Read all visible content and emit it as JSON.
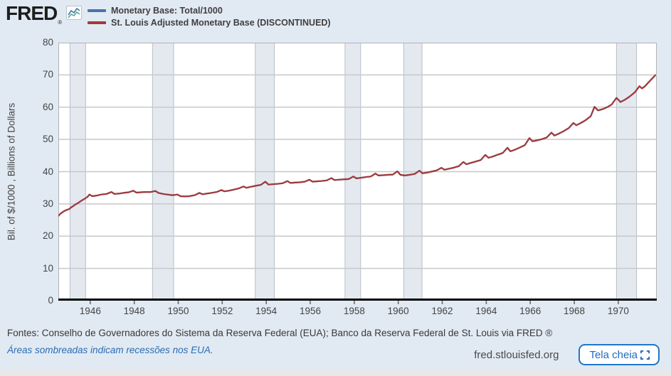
{
  "header": {
    "logo_text": "FRED",
    "registered_mark": "®",
    "legend": [
      {
        "label": "Monetary Base: Total/1000",
        "color": "#4a72a8"
      },
      {
        "label": "St. Louis Adjusted Monetary Base (DISCONTINUED)",
        "color": "#a23a3a"
      }
    ]
  },
  "footer": {
    "sources": "Fontes: Conselho de Governadores do Sistema da Reserva Federal (EUA); Banco da Reserva Federal de St. Louis via FRED ®",
    "note": "Áreas sombreadas indicam recessões nos EUA.",
    "site": "fred.stlouisfed.org",
    "fullscreen_label": "Tela cheia"
  },
  "colors": {
    "page_bg": "#e1eaf3",
    "plot_bg": "#ffffff",
    "grid": "#c8c8c8",
    "frame": "#b3b3b3",
    "band_fill": "#e4e9f0",
    "band_edge": "#b7bec7",
    "axis": "#000000",
    "tick": "#666666",
    "series_blue": "#4a72a8",
    "series_red": "#a23a3a",
    "accent_blue": "#1b6dc1"
  },
  "chart_data": {
    "type": "line",
    "title": "",
    "xlabel": "",
    "ylabel": "Bil. of $/1000 , Billions of Dollars",
    "xlim": [
      1944.55,
      1971.75
    ],
    "ylim": [
      0,
      80
    ],
    "yticks": [
      0,
      10,
      20,
      30,
      40,
      50,
      60,
      70,
      80
    ],
    "xticks": [
      1946,
      1948,
      1950,
      1952,
      1954,
      1956,
      1958,
      1960,
      1962,
      1964,
      1966,
      1968,
      1970
    ],
    "grid": "horizontal-only",
    "legend_position": "top-left",
    "recession_bands": [
      [
        1945.08,
        1945.79
      ],
      [
        1948.83,
        1949.79
      ],
      [
        1953.5,
        1954.37
      ],
      [
        1957.58,
        1958.29
      ],
      [
        1960.25,
        1961.08
      ],
      [
        1969.92,
        1970.83
      ]
    ],
    "series": [
      {
        "name": "Monetary Base: Total/1000",
        "color": "#4a72a8",
        "points": "shared"
      },
      {
        "name": "St. Louis Adjusted Monetary Base (DISCONTINUED)",
        "color": "#a23a3a",
        "points": "shared"
      }
    ],
    "points": [
      [
        1944.55,
        26.3
      ],
      [
        1944.65,
        27.0
      ],
      [
        1944.8,
        27.7
      ],
      [
        1944.95,
        28.2
      ],
      [
        1945.05,
        28.4
      ],
      [
        1945.12,
        28.9
      ],
      [
        1945.2,
        29.2
      ],
      [
        1945.3,
        29.7
      ],
      [
        1945.45,
        30.3
      ],
      [
        1945.6,
        31.0
      ],
      [
        1945.75,
        31.6
      ],
      [
        1945.88,
        32.2
      ],
      [
        1945.96,
        32.9
      ],
      [
        1946.1,
        32.4
      ],
      [
        1946.3,
        32.6
      ],
      [
        1946.5,
        32.9
      ],
      [
        1946.75,
        33.1
      ],
      [
        1946.96,
        33.7
      ],
      [
        1947.1,
        33.1
      ],
      [
        1947.3,
        33.2
      ],
      [
        1947.5,
        33.4
      ],
      [
        1947.75,
        33.6
      ],
      [
        1947.96,
        34.1
      ],
      [
        1948.1,
        33.5
      ],
      [
        1948.3,
        33.6
      ],
      [
        1948.5,
        33.7
      ],
      [
        1948.75,
        33.7
      ],
      [
        1948.96,
        34.0
      ],
      [
        1949.1,
        33.4
      ],
      [
        1949.3,
        33.1
      ],
      [
        1949.5,
        32.9
      ],
      [
        1949.75,
        32.7
      ],
      [
        1949.96,
        32.9
      ],
      [
        1950.1,
        32.4
      ],
      [
        1950.3,
        32.3
      ],
      [
        1950.5,
        32.4
      ],
      [
        1950.75,
        32.7
      ],
      [
        1950.96,
        33.4
      ],
      [
        1951.1,
        33.0
      ],
      [
        1951.3,
        33.2
      ],
      [
        1951.5,
        33.4
      ],
      [
        1951.75,
        33.7
      ],
      [
        1951.96,
        34.3
      ],
      [
        1952.1,
        33.9
      ],
      [
        1952.3,
        34.1
      ],
      [
        1952.5,
        34.4
      ],
      [
        1952.75,
        34.8
      ],
      [
        1952.96,
        35.4
      ],
      [
        1953.1,
        35.0
      ],
      [
        1953.3,
        35.3
      ],
      [
        1953.5,
        35.6
      ],
      [
        1953.75,
        35.9
      ],
      [
        1953.96,
        36.9
      ],
      [
        1954.1,
        36.0
      ],
      [
        1954.3,
        36.1
      ],
      [
        1954.5,
        36.2
      ],
      [
        1954.75,
        36.4
      ],
      [
        1954.96,
        37.1
      ],
      [
        1955.1,
        36.5
      ],
      [
        1955.3,
        36.6
      ],
      [
        1955.5,
        36.7
      ],
      [
        1955.75,
        36.9
      ],
      [
        1955.96,
        37.5
      ],
      [
        1956.1,
        36.9
      ],
      [
        1956.3,
        37.0
      ],
      [
        1956.5,
        37.1
      ],
      [
        1956.75,
        37.3
      ],
      [
        1956.96,
        38.0
      ],
      [
        1957.1,
        37.4
      ],
      [
        1957.3,
        37.5
      ],
      [
        1957.5,
        37.6
      ],
      [
        1957.75,
        37.7
      ],
      [
        1957.96,
        38.5
      ],
      [
        1958.1,
        37.9
      ],
      [
        1958.3,
        38.1
      ],
      [
        1958.5,
        38.3
      ],
      [
        1958.75,
        38.5
      ],
      [
        1958.96,
        39.4
      ],
      [
        1959.1,
        38.8
      ],
      [
        1959.3,
        38.9
      ],
      [
        1959.5,
        39.0
      ],
      [
        1959.75,
        39.1
      ],
      [
        1959.96,
        40.1
      ],
      [
        1960.1,
        39.0
      ],
      [
        1960.3,
        38.8
      ],
      [
        1960.5,
        39.0
      ],
      [
        1960.75,
        39.3
      ],
      [
        1960.96,
        40.3
      ],
      [
        1961.1,
        39.5
      ],
      [
        1961.3,
        39.7
      ],
      [
        1961.5,
        40.0
      ],
      [
        1961.75,
        40.4
      ],
      [
        1961.96,
        41.2
      ],
      [
        1962.1,
        40.6
      ],
      [
        1962.3,
        40.9
      ],
      [
        1962.5,
        41.2
      ],
      [
        1962.75,
        41.7
      ],
      [
        1962.96,
        43.0
      ],
      [
        1963.1,
        42.3
      ],
      [
        1963.3,
        42.7
      ],
      [
        1963.5,
        43.1
      ],
      [
        1963.75,
        43.6
      ],
      [
        1963.96,
        45.2
      ],
      [
        1964.1,
        44.3
      ],
      [
        1964.3,
        44.7
      ],
      [
        1964.5,
        45.2
      ],
      [
        1964.75,
        45.8
      ],
      [
        1964.96,
        47.4
      ],
      [
        1965.1,
        46.3
      ],
      [
        1965.3,
        46.8
      ],
      [
        1965.5,
        47.4
      ],
      [
        1965.75,
        48.2
      ],
      [
        1965.96,
        50.4
      ],
      [
        1966.1,
        49.4
      ],
      [
        1966.3,
        49.7
      ],
      [
        1966.5,
        50.0
      ],
      [
        1966.75,
        50.6
      ],
      [
        1966.96,
        52.1
      ],
      [
        1967.1,
        51.2
      ],
      [
        1967.3,
        51.8
      ],
      [
        1967.5,
        52.5
      ],
      [
        1967.75,
        53.5
      ],
      [
        1967.96,
        55.1
      ],
      [
        1968.1,
        54.4
      ],
      [
        1968.3,
        55.1
      ],
      [
        1968.5,
        55.9
      ],
      [
        1968.75,
        57.2
      ],
      [
        1968.92,
        60.1
      ],
      [
        1969.08,
        59.0
      ],
      [
        1969.3,
        59.4
      ],
      [
        1969.5,
        60.0
      ],
      [
        1969.7,
        60.8
      ],
      [
        1969.92,
        62.9
      ],
      [
        1970.1,
        61.6
      ],
      [
        1970.3,
        62.3
      ],
      [
        1970.5,
        63.2
      ],
      [
        1970.75,
        64.6
      ],
      [
        1970.96,
        66.5
      ],
      [
        1971.08,
        65.8
      ],
      [
        1971.2,
        66.4
      ],
      [
        1971.35,
        67.5
      ],
      [
        1971.5,
        68.6
      ],
      [
        1971.6,
        69.3
      ],
      [
        1971.68,
        69.9
      ]
    ]
  }
}
